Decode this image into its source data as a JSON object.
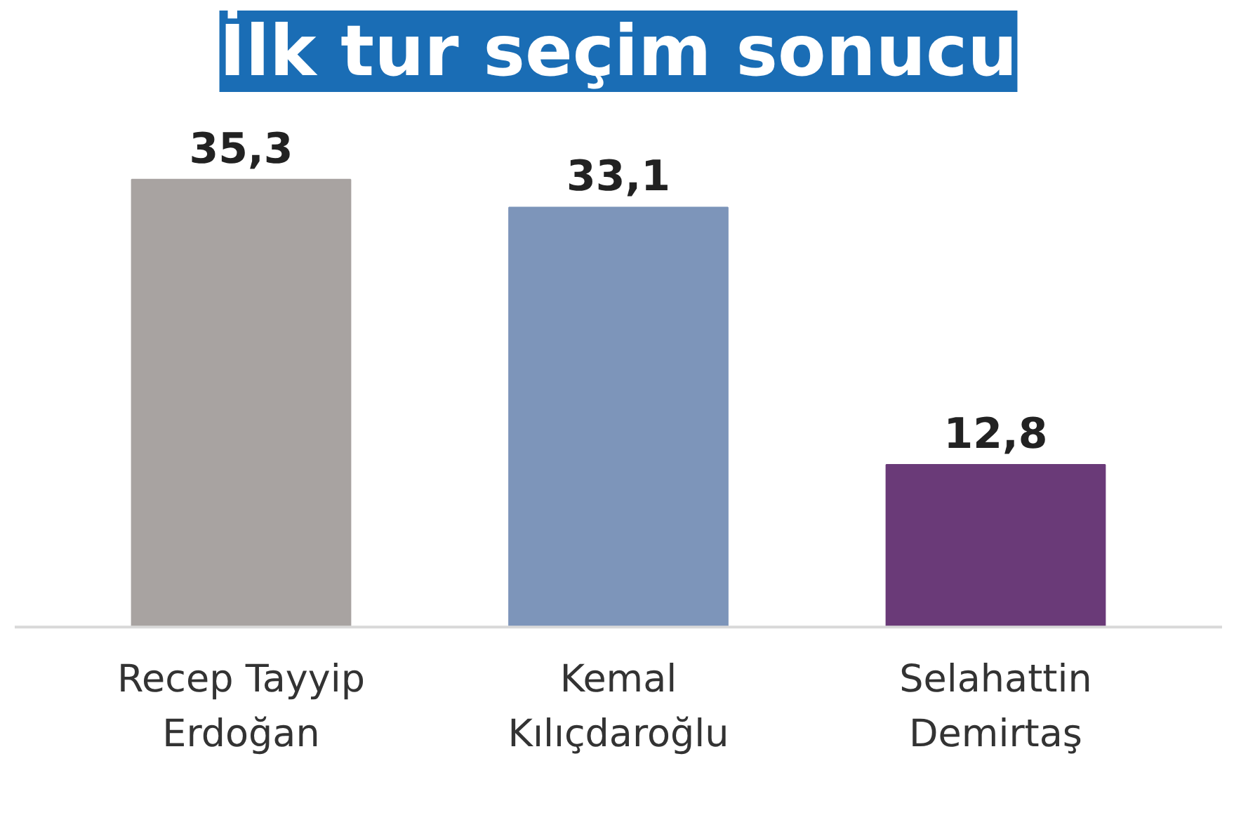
{
  "chart_data": {
    "type": "bar",
    "title": "İlk tur seçim sonucu",
    "categories": [
      "Recep Tayyip Erdoğan",
      "Kemal Kılıçdaroğlu",
      "Selahattin Demirtaş"
    ],
    "values": [
      35.3,
      33.1,
      12.8
    ],
    "colors": [
      "#a8a3a1",
      "#7d95ba",
      "#6a3a78"
    ],
    "value_labels": [
      "35,3",
      "33,1",
      "12,8"
    ],
    "grid": false
  }
}
